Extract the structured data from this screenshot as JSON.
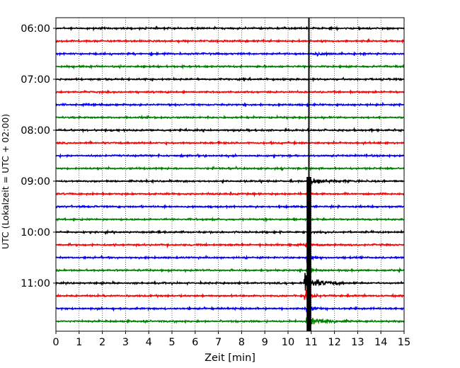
{
  "chart_data": {
    "type": "line",
    "title": "",
    "xlabel": "Zeit  [min]",
    "ylabel": "UTC (Lokalzeit = UTC + 02:00)",
    "xlim": [
      0,
      15
    ],
    "x_ticks": [
      "0",
      "1",
      "2",
      "3",
      "4",
      "5",
      "6",
      "7",
      "8",
      "9",
      "10",
      "11",
      "12",
      "13",
      "14",
      "15"
    ],
    "y_ticks": [
      "06:00",
      "07:00",
      "08:00",
      "09:00",
      "10:00",
      "11:00"
    ],
    "grid": "vertical dotted lines at each minute",
    "trace_interval_minutes": 15,
    "trace_colors": [
      "#000000",
      "#ff0000",
      "#0000ff",
      "#008000"
    ],
    "series": [
      {
        "values": [
          0.25
        ]
      },
      {
        "values": [
          0.25
        ]
      },
      {
        "values": [
          0.25
        ]
      },
      {
        "values": [
          0.25
        ]
      },
      {
        "values": [
          0.25
        ]
      },
      {
        "values": [
          0.25
        ]
      },
      {
        "values": [
          0.25
        ]
      },
      {
        "values": [
          0.25
        ]
      },
      {
        "values": [
          0.25
        ]
      },
      {
        "values": [
          0.25
        ]
      },
      {
        "values": [
          0.25
        ]
      },
      {
        "values": [
          0.25
        ]
      },
      {
        "values": [
          0.25
        ]
      },
      {
        "values": [
          0.25
        ]
      },
      {
        "values": [
          0.25
        ]
      },
      {
        "values": [
          0.25
        ]
      },
      {
        "values": [
          0.25
        ]
      },
      {
        "values": [
          0.25
        ]
      },
      {
        "values": [
          0.25
        ]
      },
      {
        "values": [
          0.25
        ]
      },
      {
        "values": [
          0.25
        ]
      },
      {
        "values": [
          0.25
        ]
      },
      {
        "values": [
          0.25
        ]
      },
      {
        "values": [
          0.25
        ]
      }
    ],
    "events": [
      {
        "trace": 2,
        "start_min": 11.1,
        "end_min": 12.2,
        "amplitude": 0.7
      },
      {
        "trace": 12,
        "start_min": 10.85,
        "end_min": 13.2,
        "amplitude": 1.1
      },
      {
        "trace": 18,
        "start_min": 10.8,
        "end_min": 11.3,
        "amplitude": 2.6
      },
      {
        "trace": 19,
        "start_min": 10.8,
        "end_min": 11.3,
        "amplitude": 2.5
      },
      {
        "trace": 20,
        "start_min": 10.7,
        "end_min": 12.4,
        "amplitude": 3.0
      },
      {
        "trace": 21,
        "start_min": 10.7,
        "end_min": 11.4,
        "amplitude": 2.4
      },
      {
        "trace": 22,
        "start_min": 10.8,
        "end_min": 11.5,
        "amplitude": 1.8
      },
      {
        "trace": 23,
        "start_min": 10.8,
        "end_min": 12.8,
        "amplitude": 1.6
      }
    ],
    "vertical_line": {
      "x": 10.9,
      "from_trace": 0,
      "to_trace": 12
    },
    "vertical_band": {
      "x_start": 10.8,
      "x_end": 11.0,
      "from_trace": 12,
      "to_trace": 24
    }
  }
}
